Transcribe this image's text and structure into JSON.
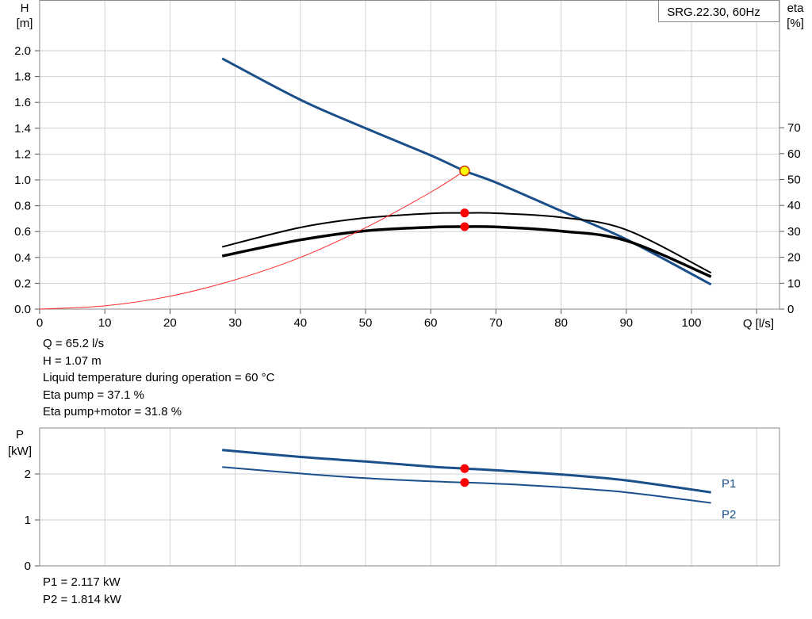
{
  "chart_data": [
    {
      "type": "line",
      "title": "SRG.22.30, 60Hz",
      "xlabel": "Q [l/s]",
      "ylabel": "H",
      "ylabel_unit": "[m]",
      "y2label": "eta",
      "y2label_unit": "[%]",
      "xlim": [
        0,
        110
      ],
      "ylim": [
        0,
        2.2
      ],
      "y2lim": [
        0,
        100
      ],
      "x_ticks": [
        0,
        10,
        20,
        30,
        40,
        50,
        60,
        70,
        80,
        90,
        100
      ],
      "y_ticks": [
        "0.0",
        "0.2",
        "0.4",
        "0.6",
        "0.8",
        "1.0",
        "1.2",
        "1.4",
        "1.6",
        "1.8",
        "2.0"
      ],
      "y2_ticks": [
        "0",
        "10",
        "20",
        "30",
        "40",
        "50",
        "60",
        "70"
      ],
      "grid": true,
      "series": [
        {
          "key": "head",
          "axis": "left",
          "color": "#1a4f8a",
          "x": [
            28,
            40,
            50,
            60,
            65.2,
            70,
            80,
            90,
            103
          ],
          "y": [
            1.94,
            1.62,
            1.4,
            1.19,
            1.07,
            0.98,
            0.76,
            0.54,
            0.19
          ]
        },
        {
          "key": "eta_pump",
          "axis": "right",
          "color": "#000000",
          "x": [
            28,
            40,
            50,
            60,
            65.2,
            70,
            80,
            90,
            103
          ],
          "y": [
            24,
            31.5,
            35.2,
            36.9,
            37.1,
            37.0,
            35.4,
            30.6,
            14
          ]
        },
        {
          "key": "eta_total",
          "axis": "right",
          "color": "#000000",
          "x": [
            28,
            40,
            50,
            60,
            65.2,
            70,
            80,
            90,
            103
          ],
          "y": [
            20.5,
            26.7,
            30.2,
            31.6,
            31.8,
            31.7,
            30.1,
            26.4,
            12.5
          ]
        },
        {
          "key": "system",
          "axis": "left",
          "color": "#ff2a2a",
          "x": [
            0,
            10,
            20,
            30,
            40,
            50,
            60,
            65.2
          ],
          "y": [
            0,
            0.025,
            0.1,
            0.227,
            0.4,
            0.63,
            0.905,
            1.07
          ]
        }
      ],
      "operating_point": {
        "x": 65.2,
        "y": 1.07
      },
      "eta_points": [
        {
          "x": 65.2,
          "y": 37.1
        },
        {
          "x": 65.2,
          "y": 31.8
        }
      ]
    },
    {
      "type": "line",
      "ylabel": "P",
      "ylabel_unit": "[kW]",
      "xlim": [
        0,
        113
      ],
      "ylim": [
        0,
        3
      ],
      "y_ticks": [
        "0",
        "1",
        "2"
      ],
      "grid": true,
      "series": [
        {
          "name": "P1",
          "color": "#1a4f8a",
          "x": [
            28,
            40,
            50,
            60,
            65.2,
            70,
            80,
            90,
            103
          ],
          "y": [
            2.52,
            2.37,
            2.27,
            2.16,
            2.117,
            2.08,
            1.99,
            1.86,
            1.6
          ]
        },
        {
          "name": "P2",
          "color": "#1a4f8a",
          "x": [
            28,
            40,
            50,
            60,
            65.2,
            70,
            80,
            90,
            103
          ],
          "y": [
            2.15,
            2.01,
            1.91,
            1.84,
            1.814,
            1.79,
            1.71,
            1.6,
            1.37
          ]
        }
      ],
      "points": [
        {
          "x": 65.2,
          "y": 2.117
        },
        {
          "x": 65.2,
          "y": 1.814
        }
      ]
    }
  ],
  "info": {
    "q": "Q = 65.2 l/s",
    "h": "H = 1.07 m",
    "temp": "Liquid temperature during operation = 60 °C",
    "eta_pump": "Eta pump = 37.1 %",
    "eta_total": "Eta pump+motor = 31.8 %",
    "p1": "P1 = 2.117 kW",
    "p2": "P2 = 1.814 kW"
  },
  "colors": {
    "curve": "#1a4f8a",
    "system": "#ff2a2a",
    "point": "#ff0000",
    "op_fill": "#ffff00",
    "grid": "#d2d2d2"
  }
}
